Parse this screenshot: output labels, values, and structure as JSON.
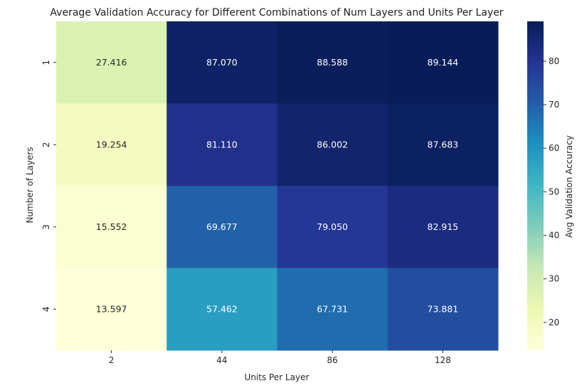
{
  "chart_data": {
    "type": "heatmap",
    "title": "Average Validation Accuracy for Different Combinations of Num Layers and Units Per Layer",
    "xlabel": "Units Per Layer",
    "ylabel": "Number of Layers",
    "x_categories": [
      "2",
      "44",
      "86",
      "128"
    ],
    "y_categories": [
      "1",
      "2",
      "3",
      "4"
    ],
    "values": [
      [
        27.416,
        87.07,
        88.588,
        89.144
      ],
      [
        19.254,
        81.11,
        86.002,
        87.683
      ],
      [
        15.552,
        69.677,
        79.05,
        82.915
      ],
      [
        13.597,
        57.462,
        67.731,
        73.881
      ]
    ],
    "cell_labels": [
      [
        "27.416",
        "87.070",
        "88.588",
        "89.144"
      ],
      [
        "19.254",
        "81.110",
        "86.002",
        "87.683"
      ],
      [
        "15.552",
        "69.677",
        "79.050",
        "82.915"
      ],
      [
        "13.597",
        "57.462",
        "67.731",
        "73.881"
      ]
    ],
    "colormap": "YlGnBu",
    "colorbar": {
      "label": "Avg Validation Accuracy",
      "range": [
        13.597,
        89.144
      ],
      "ticks": [
        20,
        30,
        40,
        50,
        60,
        70,
        80
      ]
    },
    "grid": false
  }
}
